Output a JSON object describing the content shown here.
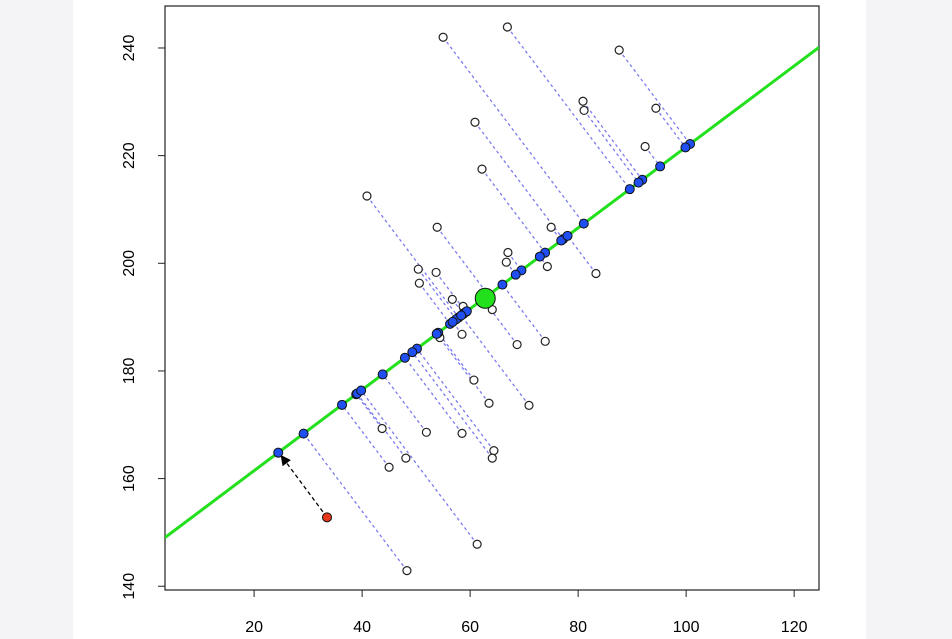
{
  "chart_data": {
    "type": "scatter",
    "x": [
      55.0,
      66.9,
      87.6,
      80.9,
      81.1,
      94.4,
      60.9,
      92.4,
      62.2,
      40.9,
      75.0,
      53.9,
      67.0,
      66.7,
      74.3,
      50.4,
      53.7,
      50.6,
      83.3,
      56.7,
      58.7,
      64.1,
      54.4,
      58.5,
      73.9,
      68.7,
      60.7,
      63.5,
      70.9,
      43.7,
      51.9,
      58.5,
      48.1,
      64.4,
      64.1,
      45.0,
      61.3,
      48.3
    ],
    "y": [
      242.0,
      243.9,
      239.6,
      230.1,
      228.4,
      228.8,
      226.2,
      221.7,
      217.5,
      212.5,
      206.7,
      206.7,
      202.0,
      200.2,
      199.4,
      198.9,
      198.3,
      196.3,
      198.1,
      193.3,
      192.0,
      191.4,
      186.2,
      186.8,
      185.5,
      184.9,
      178.3,
      174.0,
      173.6,
      169.3,
      168.6,
      168.4,
      163.8,
      165.2,
      163.8,
      162.1,
      147.8,
      142.9
    ],
    "highlight": {
      "x": 33.5,
      "y": 152.8,
      "color": "#e8391c"
    },
    "center": {
      "x": 62.8,
      "y": 193.5,
      "color": "#22e01c"
    },
    "line": {
      "slope": 0.752,
      "intercept": 146.42,
      "color": "#22e01c"
    },
    "point_color": "#ffffff",
    "projection_color": "#1f4ff0",
    "projection_line_color": "#7b7bf0",
    "xlim": [
      3.5,
      124.6
    ],
    "ylim": [
      139.3,
      247.8
    ],
    "xticks": [
      20,
      40,
      60,
      80,
      100,
      120
    ],
    "yticks": [
      140,
      160,
      180,
      200,
      220,
      240
    ]
  }
}
